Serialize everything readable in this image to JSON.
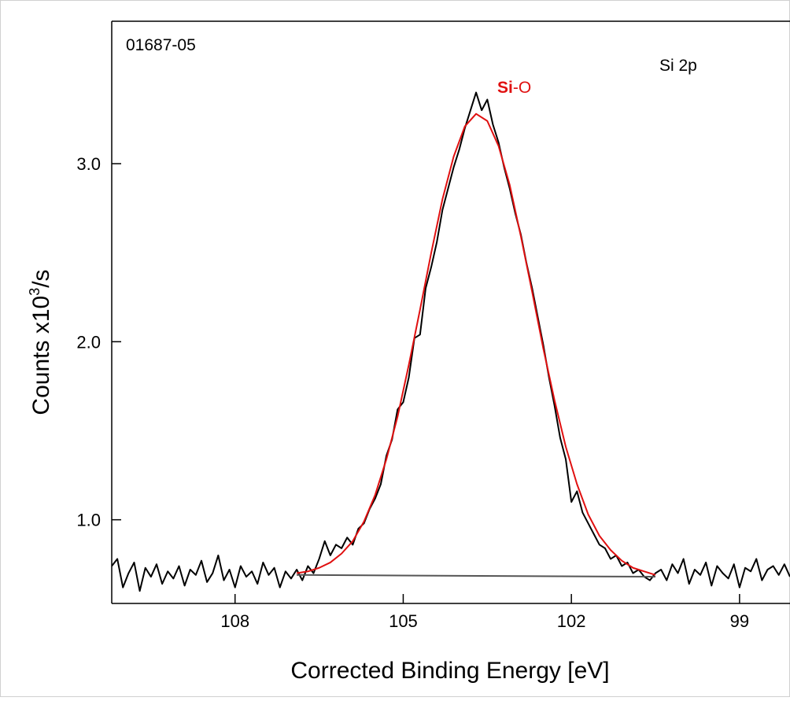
{
  "chart_data": {
    "type": "line",
    "annotations": {
      "sample": "01687-05",
      "region": "Si 2p",
      "peak_label": [
        "Si",
        "-O"
      ]
    },
    "xlabel": "Corrected Binding Energy [eV]",
    "ylabel": [
      "Counts x10",
      "3",
      "/s"
    ],
    "xlim": [
      110.2,
      98.1
    ],
    "xticks": [
      108,
      105,
      102,
      99
    ],
    "ylim": [
      0.53,
      3.8
    ],
    "yticks": [
      {
        "value": 1,
        "label": "1.0"
      },
      {
        "value": 2,
        "label": "2.0"
      },
      {
        "value": 3,
        "label": "3.0"
      }
    ],
    "peak_label_color": "#e01010",
    "series": [
      {
        "color": "#000000",
        "x": [
          110.2,
          110.1,
          110.0,
          109.9,
          109.8,
          109.7,
          109.6,
          109.5,
          109.4,
          109.3,
          109.2,
          109.1,
          109.0,
          108.9,
          108.8,
          108.7,
          108.6,
          108.5,
          108.4,
          108.3,
          108.2,
          108.1,
          108.0,
          107.9,
          107.8,
          107.7,
          107.6,
          107.5,
          107.4,
          107.3,
          107.2,
          107.1,
          107.0,
          106.9,
          106.8,
          106.7,
          106.6,
          106.5,
          106.4,
          106.3,
          106.2,
          106.1,
          106.0,
          105.9,
          105.8,
          105.7,
          105.6,
          105.5,
          105.4,
          105.3,
          105.2,
          105.1,
          105.0,
          104.9,
          104.8,
          104.7,
          104.6,
          104.5,
          104.4,
          104.3,
          104.2,
          104.1,
          104.0,
          103.9,
          103.8,
          103.7,
          103.6,
          103.5,
          103.4,
          103.3,
          103.2,
          103.1,
          103.0,
          102.9,
          102.8,
          102.7,
          102.6,
          102.5,
          102.4,
          102.3,
          102.2,
          102.1,
          102.0,
          101.9,
          101.8,
          101.7,
          101.6,
          101.5,
          101.4,
          101.3,
          101.2,
          101.1,
          101.0,
          100.9,
          100.8,
          100.7,
          100.6,
          100.5,
          100.4,
          100.3,
          100.2,
          100.1,
          100.0,
          99.9,
          99.8,
          99.7,
          99.6,
          99.5,
          99.4,
          99.3,
          99.2,
          99.1,
          99.0,
          98.9,
          98.8,
          98.7,
          98.6,
          98.5,
          98.4,
          98.3,
          98.2,
          98.1
        ],
        "values": [
          0.74,
          0.78,
          0.62,
          0.7,
          0.76,
          0.6,
          0.73,
          0.68,
          0.75,
          0.64,
          0.71,
          0.67,
          0.74,
          0.63,
          0.72,
          0.69,
          0.77,
          0.65,
          0.7,
          0.8,
          0.66,
          0.72,
          0.62,
          0.74,
          0.68,
          0.71,
          0.64,
          0.76,
          0.69,
          0.73,
          0.62,
          0.71,
          0.67,
          0.72,
          0.66,
          0.74,
          0.7,
          0.78,
          0.88,
          0.8,
          0.86,
          0.84,
          0.9,
          0.86,
          0.95,
          0.98,
          1.06,
          1.12,
          1.2,
          1.36,
          1.45,
          1.62,
          1.66,
          1.8,
          2.02,
          2.04,
          2.3,
          2.42,
          2.56,
          2.74,
          2.86,
          2.98,
          3.08,
          3.2,
          3.3,
          3.4,
          3.3,
          3.36,
          3.22,
          3.12,
          2.98,
          2.86,
          2.72,
          2.6,
          2.44,
          2.3,
          2.14,
          1.98,
          1.8,
          1.64,
          1.46,
          1.34,
          1.1,
          1.16,
          1.04,
          0.98,
          0.92,
          0.86,
          0.84,
          0.78,
          0.8,
          0.74,
          0.76,
          0.7,
          0.72,
          0.68,
          0.66,
          0.7,
          0.72,
          0.66,
          0.75,
          0.7,
          0.78,
          0.64,
          0.72,
          0.69,
          0.76,
          0.63,
          0.74,
          0.7,
          0.67,
          0.75,
          0.62,
          0.73,
          0.71,
          0.78,
          0.66,
          0.72,
          0.74,
          0.69,
          0.75,
          0.68
        ]
      },
      {
        "color": "#555555",
        "x": [
          106.9,
          100.5
        ],
        "values": [
          0.69,
          0.68
        ]
      },
      {
        "color": "#e01010",
        "x": [
          106.9,
          106.7,
          106.5,
          106.3,
          106.1,
          105.9,
          105.7,
          105.5,
          105.3,
          105.1,
          104.9,
          104.7,
          104.5,
          104.3,
          104.1,
          103.9,
          103.7,
          103.5,
          103.3,
          103.1,
          102.9,
          102.7,
          102.5,
          102.3,
          102.1,
          101.9,
          101.7,
          101.5,
          101.3,
          101.1,
          100.9,
          100.7,
          100.5
        ],
        "values": [
          0.7,
          0.71,
          0.73,
          0.76,
          0.81,
          0.88,
          0.99,
          1.14,
          1.34,
          1.58,
          1.87,
          2.18,
          2.5,
          2.8,
          3.04,
          3.21,
          3.28,
          3.24,
          3.1,
          2.88,
          2.59,
          2.28,
          1.96,
          1.67,
          1.41,
          1.2,
          1.03,
          0.91,
          0.83,
          0.77,
          0.73,
          0.71,
          0.69
        ]
      }
    ]
  }
}
